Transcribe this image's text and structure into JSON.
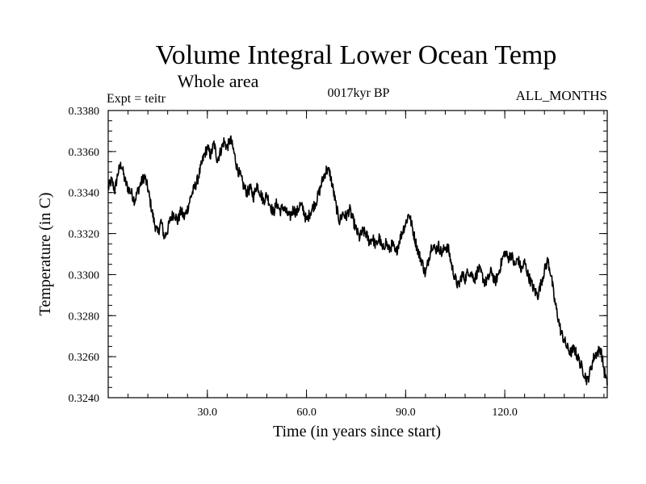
{
  "chart_data": {
    "type": "line",
    "title": "Volume Integral Lower Ocean Temp",
    "subtitle": "Whole area",
    "annotation_left": "Expt = teitr",
    "annotation_center": "0017kyr BP",
    "annotation_right": "ALL_MONTHS",
    "xlabel": "Time (in years since start)",
    "ylabel": "Temperature (in C)",
    "xlim": [
      0,
      151
    ],
    "ylim": [
      0.324,
      0.338
    ],
    "x_ticks": [
      30.0,
      60.0,
      90.0,
      120.0
    ],
    "x_tick_labels": [
      "30.0",
      "60.0",
      "90.0",
      "120.0"
    ],
    "y_ticks": [
      0.324,
      0.326,
      0.328,
      0.33,
      0.332,
      0.334,
      0.336,
      0.338
    ],
    "y_tick_labels": [
      "0.3240",
      "0.3260",
      "0.3280",
      "0.3300",
      "0.3320",
      "0.3340",
      "0.3360",
      "0.3380"
    ],
    "grid": false,
    "series": [
      {
        "name": "lower ocean temp",
        "x": [
          0,
          1,
          2,
          3,
          4,
          5,
          6,
          7,
          8,
          9,
          10,
          11,
          12,
          13,
          14,
          15,
          16,
          17,
          18,
          19,
          20,
          21,
          22,
          23,
          24,
          25,
          26,
          27,
          28,
          29,
          30,
          31,
          32,
          33,
          34,
          35,
          36,
          37,
          38,
          39,
          40,
          41,
          42,
          43,
          44,
          45,
          46,
          47,
          48,
          49,
          50,
          51,
          52,
          53,
          54,
          55,
          56,
          57,
          58,
          59,
          60,
          61,
          62,
          63,
          64,
          65,
          66,
          67,
          68,
          69,
          70,
          71,
          72,
          73,
          74,
          75,
          76,
          77,
          78,
          79,
          80,
          81,
          82,
          83,
          84,
          85,
          86,
          87,
          88,
          89,
          90,
          91,
          92,
          93,
          94,
          95,
          96,
          97,
          98,
          99,
          100,
          101,
          102,
          103,
          104,
          105,
          106,
          107,
          108,
          109,
          110,
          111,
          112,
          113,
          114,
          115,
          116,
          117,
          118,
          119,
          120,
          121,
          122,
          123,
          124,
          125,
          126,
          127,
          128,
          129,
          130,
          131,
          132,
          133,
          134,
          135,
          136,
          137,
          138,
          139,
          140,
          141,
          142,
          143,
          144,
          145,
          146,
          147,
          148,
          149,
          150,
          151
        ],
        "y": [
          0.3342,
          0.3346,
          0.3341,
          0.335,
          0.3354,
          0.3346,
          0.3342,
          0.334,
          0.3336,
          0.3341,
          0.3345,
          0.3348,
          0.3342,
          0.3333,
          0.3325,
          0.332,
          0.3326,
          0.3318,
          0.3322,
          0.3328,
          0.333,
          0.3326,
          0.3331,
          0.3328,
          0.3332,
          0.3338,
          0.3342,
          0.3346,
          0.3352,
          0.3358,
          0.3362,
          0.3358,
          0.3364,
          0.3356,
          0.336,
          0.3365,
          0.3362,
          0.3366,
          0.336,
          0.3352,
          0.3348,
          0.3343,
          0.334,
          0.3342,
          0.3338,
          0.3344,
          0.334,
          0.3336,
          0.3339,
          0.3334,
          0.333,
          0.3335,
          0.3331,
          0.3333,
          0.333,
          0.3328,
          0.3332,
          0.333,
          0.3334,
          0.3332,
          0.3326,
          0.333,
          0.3333,
          0.3336,
          0.3341,
          0.3347,
          0.3351,
          0.335,
          0.3342,
          0.3333,
          0.3326,
          0.333,
          0.3328,
          0.3332,
          0.3327,
          0.3322,
          0.3318,
          0.3321,
          0.332,
          0.3316,
          0.3318,
          0.3314,
          0.3318,
          0.3312,
          0.3316,
          0.3312,
          0.3315,
          0.331,
          0.3316,
          0.3321,
          0.3325,
          0.333,
          0.3323,
          0.3316,
          0.331,
          0.3306,
          0.33,
          0.3308,
          0.3315,
          0.3312,
          0.3314,
          0.331,
          0.3314,
          0.3312,
          0.3304,
          0.3298,
          0.3294,
          0.33,
          0.3298,
          0.3302,
          0.33,
          0.3298,
          0.3303,
          0.33,
          0.3296,
          0.3298,
          0.3302,
          0.3296,
          0.33,
          0.3306,
          0.3311,
          0.3308,
          0.331,
          0.3304,
          0.3308,
          0.3302,
          0.3306,
          0.33,
          0.3296,
          0.3292,
          0.329,
          0.3296,
          0.3302,
          0.3307,
          0.33,
          0.3288,
          0.328,
          0.3272,
          0.3268,
          0.3264,
          0.3262,
          0.3264,
          0.326,
          0.3256,
          0.3252,
          0.3248,
          0.3254,
          0.326,
          0.3262,
          0.3264,
          0.3254,
          0.3246
        ]
      }
    ]
  }
}
